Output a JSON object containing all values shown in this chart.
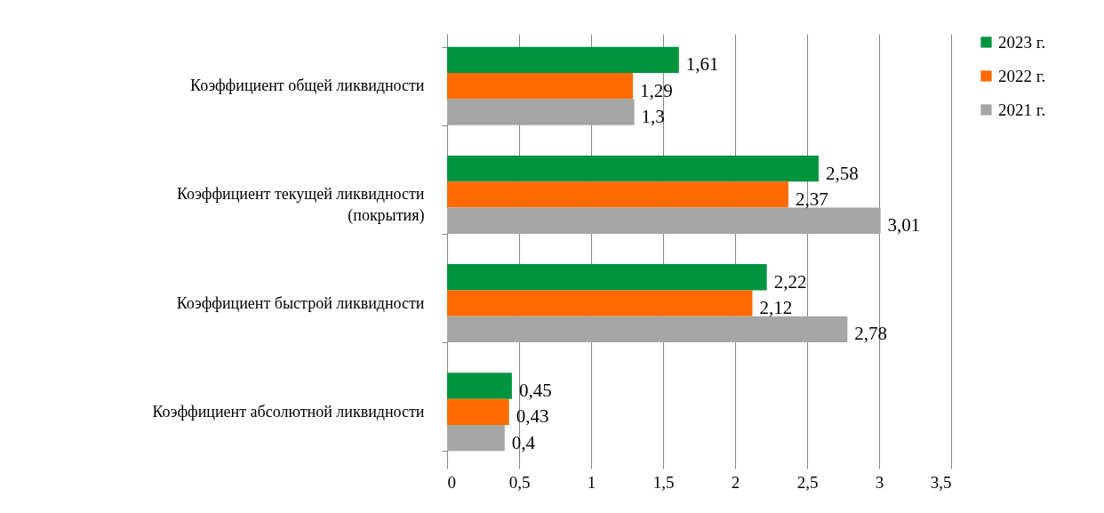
{
  "chart_data": {
    "type": "bar",
    "orientation": "horizontal",
    "categories": [
      "Коэффициент общей ликвидности",
      "Коэффициент текущей ликвидности (покрытия)",
      "Коэффициент быстрой ликвидности",
      "Коэффициент абсолютной ликвидности"
    ],
    "series": [
      {
        "name": "2023 г.",
        "color": "#00943f",
        "values": [
          1.61,
          2.58,
          2.22,
          0.45
        ],
        "value_labels": [
          "1,61",
          "2,58",
          "2,22",
          "0,45"
        ]
      },
      {
        "name": "2022 г.",
        "color": "#ff6a00",
        "values": [
          1.29,
          2.37,
          2.12,
          0.43
        ],
        "value_labels": [
          "1,29",
          "2,37",
          "2,12",
          "0,43"
        ]
      },
      {
        "name": "2021 г.",
        "color": "#a6a6a6",
        "values": [
          1.3,
          3.01,
          2.78,
          0.4
        ],
        "value_labels": [
          "1,3",
          "3,01",
          "2,78",
          "0,4"
        ]
      }
    ],
    "xlim": [
      0,
      3.5
    ],
    "xticks": [
      0,
      {
        "value": 0.5,
        "label": "0,5"
      },
      1,
      {
        "value": 1.5,
        "label": "1,5"
      },
      2,
      {
        "value": 2.5,
        "label": "2,5"
      },
      3,
      {
        "value": 3.5,
        "label": "3,5"
      }
    ],
    "grid": "x",
    "legend": "right"
  }
}
